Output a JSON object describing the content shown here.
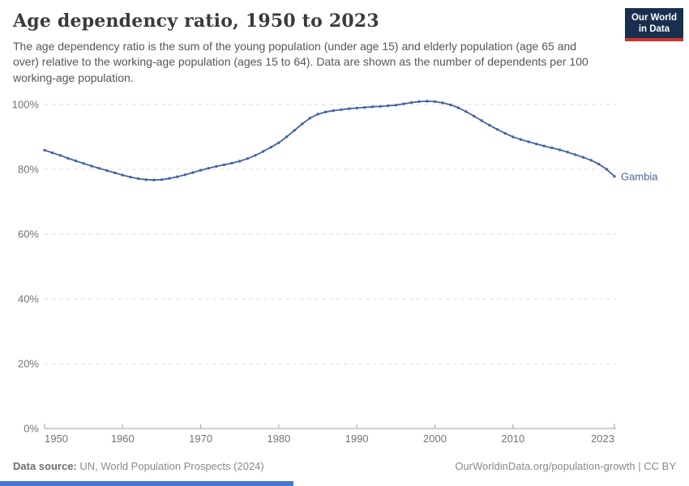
{
  "header": {
    "title": "Age dependency ratio, 1950 to 2023",
    "subtitle": "The age dependency ratio is the sum of the young population (under age 15) and elderly population (age 65 and over) relative to the working-age population (ages 15 to 64). Data are shown as the number of dependents per 100 working-age population.",
    "logo": {
      "line1": "Our World",
      "line2": "in Data"
    }
  },
  "chart_data": {
    "type": "line",
    "title": "Age dependency ratio, 1950 to 2023",
    "xlabel": "",
    "ylabel": "",
    "unit": "%",
    "xlim": [
      1950,
      2023
    ],
    "ylim": [
      0,
      100
    ],
    "grid": "dashed-horizontal",
    "legend_position": "end-of-line-label",
    "ytick_values": [
      0,
      20,
      40,
      60,
      80,
      100
    ],
    "yticks": [
      "0%",
      "20%",
      "40%",
      "60%",
      "80%",
      "100%"
    ],
    "xtick_values": [
      1950,
      1960,
      1970,
      1980,
      1990,
      2000,
      2010,
      2023
    ],
    "xticks": [
      "1950",
      "1960",
      "1970",
      "1980",
      "1990",
      "2000",
      "2010",
      "2023"
    ],
    "x": [
      1950,
      1951,
      1952,
      1953,
      1954,
      1955,
      1956,
      1957,
      1958,
      1959,
      1960,
      1961,
      1962,
      1963,
      1964,
      1965,
      1966,
      1967,
      1968,
      1969,
      1970,
      1971,
      1972,
      1973,
      1974,
      1975,
      1976,
      1977,
      1978,
      1979,
      1980,
      1981,
      1982,
      1983,
      1984,
      1985,
      1986,
      1987,
      1988,
      1989,
      1990,
      1991,
      1992,
      1993,
      1994,
      1995,
      1996,
      1997,
      1998,
      1999,
      2000,
      2001,
      2002,
      2003,
      2004,
      2005,
      2006,
      2007,
      2008,
      2009,
      2010,
      2011,
      2012,
      2013,
      2014,
      2015,
      2016,
      2017,
      2018,
      2019,
      2020,
      2021,
      2022,
      2023
    ],
    "series": [
      {
        "name": "Gambia",
        "color": "#4664a0",
        "values": [
          85.9,
          85.1,
          84.3,
          83.4,
          82.6,
          81.8,
          81.0,
          80.3,
          79.6,
          78.9,
          78.2,
          77.6,
          77.1,
          76.8,
          76.7,
          76.8,
          77.2,
          77.7,
          78.3,
          79.0,
          79.7,
          80.3,
          80.9,
          81.4,
          81.9,
          82.5,
          83.3,
          84.3,
          85.5,
          86.8,
          88.2,
          90.0,
          92.0,
          94.0,
          95.8,
          97.0,
          97.7,
          98.1,
          98.4,
          98.7,
          98.9,
          99.1,
          99.3,
          99.4,
          99.6,
          99.8,
          100.2,
          100.6,
          100.9,
          101.0,
          100.9,
          100.5,
          99.9,
          99.0,
          97.8,
          96.4,
          95.0,
          93.6,
          92.3,
          91.1,
          90.0,
          89.2,
          88.5,
          87.8,
          87.2,
          86.6,
          86.0,
          85.3,
          84.5,
          83.7,
          82.8,
          81.6,
          80.0,
          77.8
        ]
      }
    ]
  },
  "footer": {
    "source_label": "Data source:",
    "source_text": " UN, World Population Prospects (2024)",
    "credit": "OurWorldinData.org/population-growth | CC BY"
  },
  "colors": {
    "line": "#4664a0",
    "entity_label": "#4664a0",
    "gridline": "#dcdcdc",
    "axis": "#a3a3a3",
    "tick_label": "#737373",
    "title": "#3a3a3a",
    "subtitle": "#565656",
    "footer": "#8a8a8a",
    "logo_bg": "#18304e",
    "logo_red": "#d0342c",
    "progress_bar": "#4777d0"
  }
}
